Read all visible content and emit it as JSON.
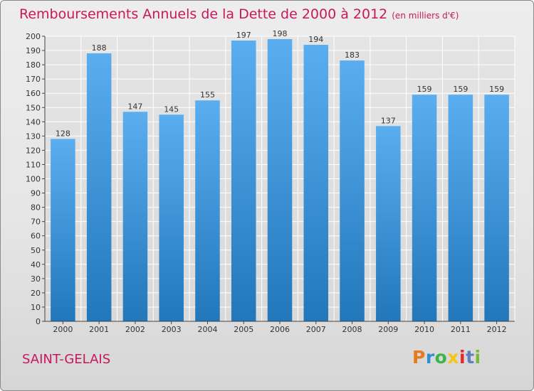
{
  "header": {
    "title": "Remboursements Annuels de la Dette de 2000 à 2012",
    "subtitle": "(en milliers d'€)"
  },
  "footer": {
    "place": "SAINT-GELAIS",
    "logo": "Proxiti",
    "logo_colors": [
      "#e87a1c",
      "#2d8fd1",
      "#3bb54a",
      "#f5c518",
      "#e8262e",
      "#5e7fc2",
      "#78b83a"
    ]
  },
  "colors": {
    "bar_top": "#5aaef0",
    "bar_bottom": "#2277bb",
    "grid": "#ffffff",
    "title": "#c8185a"
  },
  "chart_data": {
    "type": "bar",
    "title": "Remboursements Annuels de la Dette de 2000 à 2012",
    "categories": [
      "2000",
      "2001",
      "2002",
      "2003",
      "2004",
      "2005",
      "2006",
      "2007",
      "2008",
      "2009",
      "2010",
      "2011",
      "2012"
    ],
    "values": [
      128,
      188,
      147,
      145,
      155,
      197,
      198,
      194,
      183,
      137,
      159,
      159,
      159
    ],
    "ylim": [
      0,
      200
    ],
    "yticks": [
      0,
      10,
      20,
      30,
      40,
      50,
      60,
      70,
      80,
      90,
      100,
      110,
      120,
      130,
      140,
      150,
      160,
      170,
      180,
      190,
      200
    ],
    "grid": true,
    "xlabel": "",
    "ylabel": ""
  }
}
